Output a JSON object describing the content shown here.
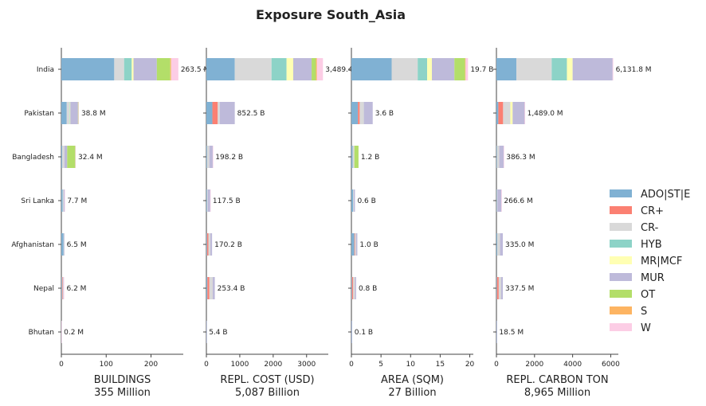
{
  "chart_data": {
    "type": "bar",
    "orientation": "horizontal",
    "stacked": true,
    "title": "Exposure South_Asia",
    "categories": [
      "India",
      "Pakistan",
      "Bangladesh",
      "Sri Lanka",
      "Afghanistan",
      "Nepal",
      "Bhutan"
    ],
    "legend": {
      "position": "right",
      "entries": [
        {
          "name": "ADO|ST|E",
          "color": "#80b1d3"
        },
        {
          "name": "CR+",
          "color": "#fb8072"
        },
        {
          "name": "CR-",
          "color": "#d9d9d9"
        },
        {
          "name": "HYB",
          "color": "#8dd3c7"
        },
        {
          "name": "MR|MCF",
          "color": "#ffffb3"
        },
        {
          "name": "MUR",
          "color": "#bebada"
        },
        {
          "name": "OT",
          "color": "#b3de69"
        },
        {
          "name": "S",
          "color": "#fdb462"
        },
        {
          "name": "W",
          "color": "#fccde5"
        }
      ]
    },
    "panels": [
      {
        "xlabel": "BUILDINGS",
        "total_label": "355 Million",
        "xlim": [
          0,
          272
        ],
        "xticks": [
          0,
          100,
          200
        ],
        "tick_labels": [
          "0",
          "100",
          "200"
        ],
        "bar_labels": [
          "263.5 M",
          "38.8 M",
          "32.4 M",
          "7.7 M",
          "6.5 M",
          "6.2 M",
          "0.2 M"
        ],
        "values": [
          [
            118,
            0,
            22,
            17,
            4,
            52,
            30,
            2,
            16
          ],
          [
            12,
            0,
            6,
            1,
            1,
            17,
            1,
            0,
            1
          ],
          [
            2,
            0,
            5,
            0,
            0,
            6,
            18,
            0,
            1
          ],
          [
            3,
            0,
            2,
            0,
            0,
            2,
            0,
            0,
            0.7
          ],
          [
            5,
            0,
            1,
            0,
            0,
            0.5,
            0,
            0,
            0
          ],
          [
            1.5,
            1.5,
            1,
            0,
            0,
            1,
            0,
            0,
            1.2
          ],
          [
            0.1,
            0,
            0,
            0,
            0,
            0,
            0,
            0,
            0.1
          ]
        ]
      },
      {
        "xlabel": "REPL. COST (USD)",
        "total_label": "5,087 Billion",
        "xlim": [
          0,
          3650
        ],
        "xticks": [
          0,
          1000,
          2000,
          3000
        ],
        "tick_labels": [
          "0",
          "1000",
          "2000",
          "3000"
        ],
        "bar_labels": [
          "3,489.4 B",
          "852.5 B",
          "198.2 B",
          "117.5 B",
          "170.2 B",
          "253.4 B",
          "5.4 B"
        ],
        "values": [
          [
            850,
            0,
            1100,
            450,
            200,
            550,
            130,
            30,
            180
          ],
          [
            180,
            160,
            60,
            0,
            0,
            450,
            0,
            0,
            0
          ],
          [
            20,
            0,
            70,
            0,
            0,
            100,
            0,
            0,
            8
          ],
          [
            20,
            0,
            20,
            0,
            0,
            75,
            0,
            0,
            2
          ],
          [
            20,
            40,
            60,
            0,
            0,
            50,
            0,
            0,
            0
          ],
          [
            30,
            60,
            100,
            0,
            0,
            63,
            0,
            0,
            0
          ],
          [
            3,
            0,
            0,
            0,
            0,
            2,
            0,
            0,
            0
          ]
        ]
      },
      {
        "xlabel": "AREA (SQM)",
        "total_label": "27 Billion",
        "xlim": [
          0,
          20.6
        ],
        "xticks": [
          0,
          5,
          10,
          15,
          20
        ],
        "tick_labels": [
          "0",
          "5",
          "10",
          "15",
          "20"
        ],
        "bar_labels": [
          "19.7 B",
          "3.6 B",
          "1.2 B",
          "0.6 B",
          "1.0 B",
          "0.8 B",
          "0.1 B"
        ],
        "values": [
          [
            6.8,
            0,
            4.4,
            1.6,
            0.8,
            3.8,
            1.8,
            0.1,
            0.4
          ],
          [
            1.1,
            0.3,
            0.7,
            0,
            0,
            1.5,
            0,
            0,
            0
          ],
          [
            0.2,
            0,
            0.3,
            0,
            0,
            0,
            0.7,
            0,
            0
          ],
          [
            0.3,
            0,
            0.1,
            0,
            0,
            0.2,
            0,
            0,
            0
          ],
          [
            0.5,
            0.1,
            0.2,
            0,
            0,
            0.2,
            0,
            0,
            0
          ],
          [
            0.1,
            0.2,
            0.3,
            0,
            0,
            0.2,
            0,
            0,
            0
          ],
          [
            0.05,
            0,
            0,
            0,
            0,
            0.05,
            0,
            0,
            0
          ]
        ]
      },
      {
        "xlabel": "REPL. CARBON TON",
        "total_label": "8,965 Million",
        "xlim": [
          0,
          6400
        ],
        "xticks": [
          0,
          2000,
          4000,
          6000
        ],
        "tick_labels": [
          "0",
          "2000",
          "4000",
          "6000"
        ],
        "bar_labels": [
          "6,131.8 M",
          "1,489.0 M",
          "386.3 M",
          "266.6 M",
          "335.0 M",
          "337.5 M",
          "18.5 M"
        ],
        "values": [
          [
            1050,
            0,
            1850,
            800,
            300,
            2100,
            0,
            0,
            32
          ],
          [
            100,
            250,
            380,
            0,
            120,
            630,
            0,
            0,
            9
          ],
          [
            30,
            0,
            120,
            0,
            0,
            230,
            0,
            0,
            6
          ],
          [
            20,
            0,
            30,
            0,
            0,
            210,
            0,
            0,
            7
          ],
          [
            40,
            0,
            150,
            0,
            0,
            145,
            0,
            0,
            0
          ],
          [
            30,
            90,
            130,
            0,
            0,
            87,
            0,
            0,
            0
          ],
          [
            10,
            0,
            0,
            0,
            0,
            8,
            0,
            0,
            0
          ]
        ]
      }
    ]
  }
}
